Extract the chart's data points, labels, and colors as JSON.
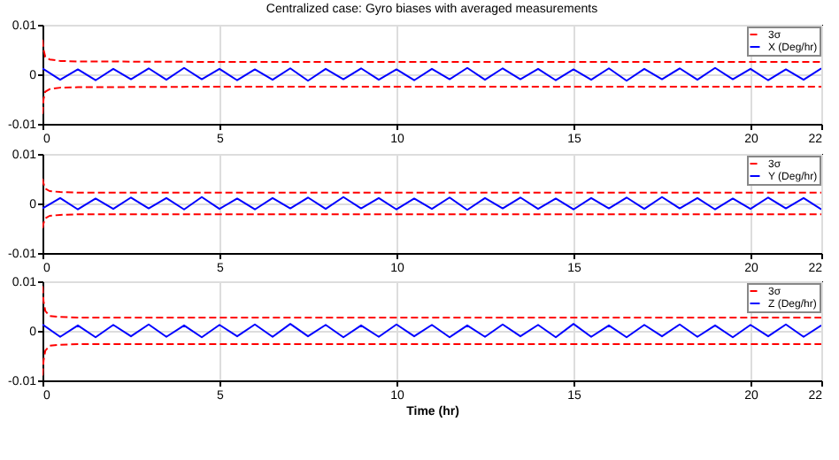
{
  "chart_data": [
    {
      "type": "line",
      "title": "Centralized case: Gyro biases with averaged measurements",
      "xlim": [
        0,
        22
      ],
      "xticks": [
        0,
        5,
        10,
        15,
        20,
        22
      ],
      "ylim": [
        -0.01,
        0.01
      ],
      "yticks": [
        -0.01,
        0,
        0.01
      ],
      "grid": true,
      "legend": "top right",
      "series": [
        {
          "name": "3σ",
          "color": "#ff0000",
          "line_style": "dashed",
          "x": [
            0,
            0.03,
            0.08,
            0.2,
            0.5,
            1,
            5,
            10,
            15,
            20,
            22
          ],
          "values": [
            0.007,
            0.005,
            0.0035,
            0.003,
            0.0027,
            0.0026,
            0.0025,
            0.0025,
            0.0025,
            0.0025,
            0.0025
          ]
        },
        {
          "color": "#ff0000",
          "line_style": "dashed",
          "x": [
            0,
            0.03,
            0.08,
            0.2,
            0.5,
            1,
            5,
            10,
            15,
            20,
            22
          ],
          "values": [
            -0.008,
            -0.005,
            -0.0035,
            -0.003,
            -0.0027,
            -0.0026,
            -0.0025,
            -0.0025,
            -0.0025,
            -0.0025,
            -0.0025
          ]
        },
        {
          "name": "X (Deg/hr)",
          "color": "#0000ff",
          "line_style": "solid",
          "x": [
            0,
            0.5,
            1,
            1.5,
            2,
            2.5,
            3,
            3.5,
            4,
            4.5,
            5,
            5.5,
            6,
            6.5,
            7,
            7.5,
            8,
            8.5,
            9,
            9.5,
            10,
            10.5,
            11,
            11.5,
            12,
            12.5,
            13,
            13.5,
            14,
            14.5,
            15,
            15.5,
            16,
            16.5,
            17,
            17.5,
            18,
            18.5,
            19,
            19.5,
            20,
            20.5,
            21,
            21.5,
            22
          ],
          "values": [
            0.0012,
            -0.0011,
            0.001,
            -0.0012,
            0.0011,
            -0.001,
            0.0012,
            -0.0011,
            0.0013,
            -0.001,
            0.0011,
            -0.0012,
            0.001,
            -0.0011,
            0.0012,
            -0.0013,
            0.0011,
            -0.001,
            0.0012,
            -0.0011,
            0.001,
            -0.0012,
            0.0011,
            -0.001,
            0.0013,
            -0.0011,
            0.0012,
            -0.001,
            0.0011,
            -0.0012,
            0.001,
            -0.0011,
            0.0012,
            -0.0013,
            0.0011,
            -0.001,
            0.0012,
            -0.0011,
            0.0013,
            -0.001,
            0.0011,
            -0.0012,
            0.001,
            -0.0011,
            0.0012
          ]
        }
      ]
    },
    {
      "type": "line",
      "xlim": [
        0,
        22
      ],
      "xticks": [
        0,
        5,
        10,
        15,
        20,
        22
      ],
      "ylim": [
        -0.01,
        0.01
      ],
      "yticks": [
        -0.01,
        0,
        0.01
      ],
      "grid": true,
      "legend": "top right",
      "series": [
        {
          "name": "3σ",
          "color": "#ff0000",
          "line_style": "dashed",
          "x": [
            0,
            0.03,
            0.08,
            0.2,
            0.5,
            1,
            5,
            10,
            15,
            20,
            22
          ],
          "values": [
            0.005,
            0.004,
            0.003,
            0.0025,
            0.0023,
            0.0022,
            0.0022,
            0.0022,
            0.0022,
            0.0022,
            0.0022
          ]
        },
        {
          "color": "#ff0000",
          "line_style": "dashed",
          "x": [
            0,
            0.03,
            0.08,
            0.2,
            0.5,
            1,
            5,
            10,
            15,
            20,
            22
          ],
          "values": [
            -0.005,
            -0.004,
            -0.003,
            -0.0025,
            -0.0023,
            -0.0022,
            -0.0022,
            -0.0022,
            -0.0022,
            -0.0022,
            -0.0022
          ]
        },
        {
          "name": "Y (Deg/hr)",
          "color": "#0000ff",
          "line_style": "solid",
          "x": [
            0,
            0.5,
            1,
            1.5,
            2,
            2.5,
            3,
            3.5,
            4,
            4.5,
            5,
            5.5,
            6,
            6.5,
            7,
            7.5,
            8,
            8.5,
            9,
            9.5,
            10,
            10.5,
            11,
            11.5,
            12,
            12.5,
            13,
            13.5,
            14,
            14.5,
            15,
            15.5,
            16,
            16.5,
            17,
            17.5,
            18,
            18.5,
            19,
            19.5,
            20,
            20.5,
            21,
            21.5,
            22
          ],
          "values": [
            -0.001,
            0.0011,
            -0.0012,
            0.001,
            -0.0011,
            0.0012,
            -0.001,
            0.0011,
            -0.0012,
            0.0013,
            -0.0011,
            0.001,
            -0.0012,
            0.0011,
            -0.001,
            0.0012,
            -0.0011,
            0.0013,
            -0.001,
            0.0011,
            -0.0012,
            0.001,
            -0.0011,
            0.0012,
            -0.0013,
            0.0011,
            -0.001,
            0.0012,
            -0.0011,
            0.001,
            -0.0012,
            0.0011,
            -0.001,
            0.0012,
            -0.0011,
            0.0013,
            -0.001,
            0.0011,
            -0.0012,
            0.001,
            -0.0011,
            0.0012,
            -0.001,
            0.0011,
            -0.0012
          ]
        }
      ]
    },
    {
      "type": "line",
      "xlabel": "Time (hr)",
      "xlim": [
        0,
        22
      ],
      "xticks": [
        0,
        5,
        10,
        15,
        20,
        22
      ],
      "ylim": [
        -0.01,
        0.01
      ],
      "yticks": [
        -0.01,
        0,
        0.01
      ],
      "grid": true,
      "legend": "top right",
      "series": [
        {
          "name": "3σ",
          "color": "#ff0000",
          "line_style": "dashed",
          "x": [
            0,
            0.03,
            0.08,
            0.2,
            0.5,
            1,
            5,
            10,
            15,
            20,
            22
          ],
          "values": [
            0.009,
            0.006,
            0.004,
            0.003,
            0.0028,
            0.0027,
            0.0027,
            0.0027,
            0.0027,
            0.0027,
            0.0027
          ]
        },
        {
          "color": "#ff0000",
          "line_style": "dashed",
          "x": [
            0,
            0.03,
            0.08,
            0.2,
            0.5,
            1,
            5,
            10,
            15,
            20,
            22
          ],
          "values": [
            -0.009,
            -0.006,
            -0.004,
            -0.003,
            -0.0028,
            -0.0027,
            -0.0027,
            -0.0027,
            -0.0027,
            -0.0027,
            -0.0027
          ]
        },
        {
          "name": "Z (Deg/hr)",
          "color": "#0000ff",
          "line_style": "solid",
          "x": [
            0,
            0.5,
            1,
            1.5,
            2,
            2.5,
            3,
            3.5,
            4,
            4.5,
            5,
            5.5,
            6,
            6.5,
            7,
            7.5,
            8,
            8.5,
            9,
            9.5,
            10,
            10.5,
            11,
            11.5,
            12,
            12.5,
            13,
            13.5,
            14,
            14.5,
            15,
            15.5,
            16,
            16.5,
            17,
            17.5,
            18,
            18.5,
            19,
            19.5,
            20,
            20.5,
            21,
            21.5,
            22
          ],
          "values": [
            0.0013,
            -0.0012,
            0.0011,
            -0.0013,
            0.0012,
            -0.0011,
            0.0013,
            -0.0012,
            0.0011,
            -0.0013,
            0.0012,
            -0.0011,
            0.0013,
            -0.0012,
            0.0014,
            -0.0011,
            0.0012,
            -0.0013,
            0.0011,
            -0.0012,
            0.0013,
            -0.0011,
            0.0012,
            -0.0013,
            0.0011,
            -0.0012,
            0.0013,
            -0.0011,
            0.0012,
            -0.0013,
            0.0014,
            -0.0012,
            0.0011,
            -0.0013,
            0.0012,
            -0.0011,
            0.0013,
            -0.0012,
            0.0011,
            -0.0013,
            0.0012,
            -0.0011,
            0.0013,
            -0.0012,
            0.0011
          ]
        }
      ]
    }
  ]
}
